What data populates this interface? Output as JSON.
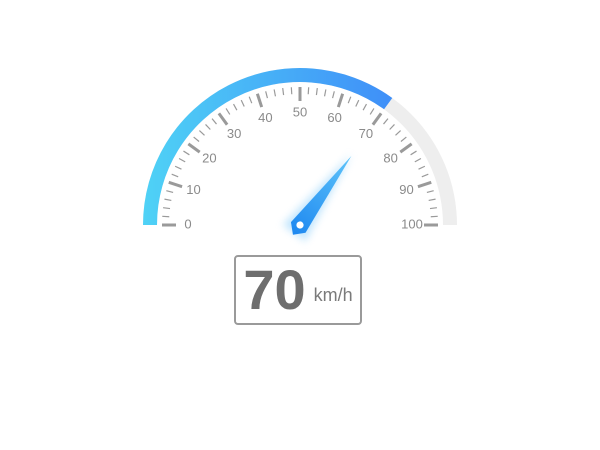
{
  "chart_data": {
    "type": "gauge",
    "value": 70,
    "unit": "km/h",
    "min": 0,
    "max": 100,
    "major_ticks": [
      0,
      10,
      20,
      30,
      40,
      50,
      60,
      70,
      80,
      90,
      100
    ],
    "tick_labels": [
      "0",
      "10",
      "20",
      "30",
      "40",
      "50",
      "60",
      "70",
      "80",
      "90",
      "100"
    ],
    "colors": {
      "progress_start": "#4fd2f6",
      "progress_end": "#3f8ef8",
      "track": "#eeeeee",
      "ticks": "#9a9a9a",
      "pointer": "#3aa3f5"
    }
  },
  "readout": {
    "value": "70",
    "unit": "km/h"
  }
}
